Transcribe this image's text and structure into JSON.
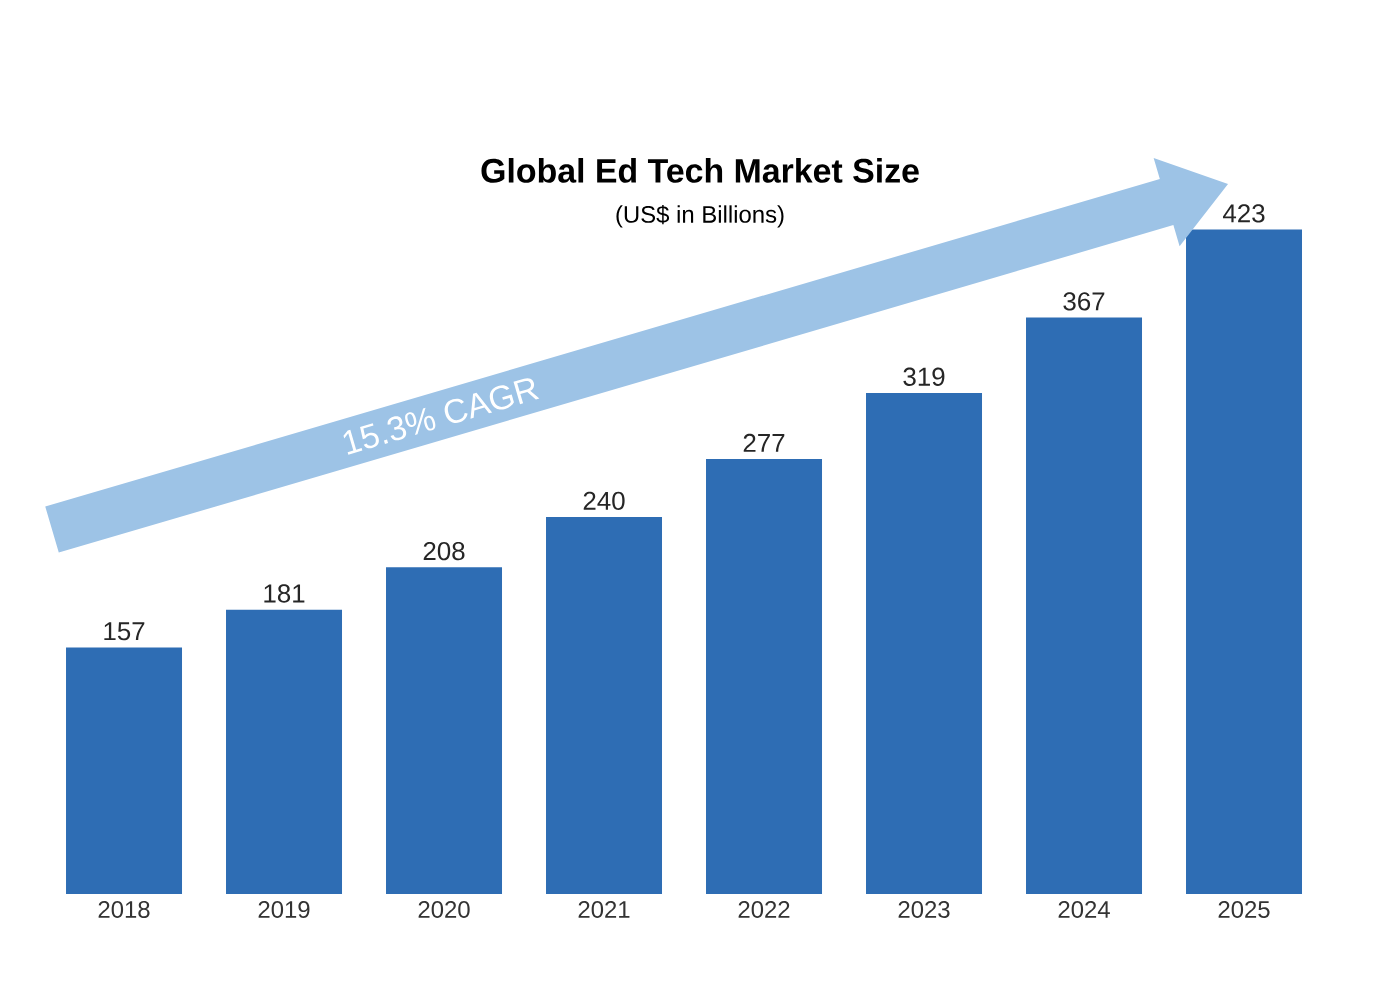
{
  "chart_data": {
    "type": "bar",
    "title": "Global Ed Tech Market Size",
    "subtitle": "(US$ in Billions)",
    "categories": [
      "2018",
      "2019",
      "2020",
      "2021",
      "2022",
      "2023",
      "2024",
      "2025"
    ],
    "values": [
      157,
      181,
      208,
      240,
      277,
      319,
      367,
      423
    ],
    "color": "#2e6db4",
    "data_labels": true,
    "annotations": [
      "15.3% CAGR"
    ]
  }
}
